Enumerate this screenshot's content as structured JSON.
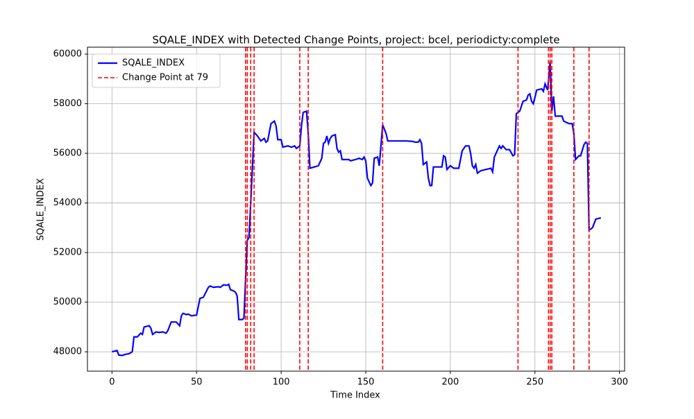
{
  "chart_data": {
    "type": "line",
    "title": "SQALE_INDEX with Detected Change Points, project: bcel, periodicty:complete",
    "xlabel": "Time Index",
    "ylabel": "SQALE_INDEX",
    "x": [
      0,
      3,
      4,
      6,
      8,
      10,
      12,
      13,
      15,
      17,
      18,
      19,
      22,
      23,
      24,
      26,
      28,
      30,
      32,
      33,
      35,
      38,
      40,
      41,
      42,
      44,
      45,
      47,
      50,
      52,
      54,
      57,
      58,
      60,
      63,
      64,
      66,
      68,
      69,
      70,
      72,
      73,
      74,
      75,
      77,
      78,
      79,
      80,
      81,
      82,
      84,
      86,
      88,
      90,
      91,
      92,
      94,
      96,
      97,
      98,
      100,
      101,
      104,
      106,
      108,
      109,
      110,
      111,
      112,
      113,
      115,
      116,
      117,
      122,
      124,
      125,
      126,
      127,
      128,
      129,
      130,
      132,
      133,
      134,
      135,
      136,
      140,
      141,
      144,
      146,
      148,
      149,
      150,
      151,
      152,
      153,
      154,
      155,
      157,
      158,
      160,
      162,
      163,
      169,
      174,
      178,
      179,
      181,
      182,
      183,
      184,
      186,
      187,
      188,
      189,
      190,
      195,
      196,
      197,
      198,
      200,
      202,
      205,
      207,
      209,
      211,
      212,
      213,
      214,
      215,
      216,
      218,
      221,
      224,
      225,
      226,
      229,
      230,
      231,
      233,
      235,
      237,
      238,
      239,
      241,
      243,
      245,
      246,
      247,
      248,
      249,
      250,
      251,
      254,
      255,
      256,
      257.5,
      259,
      260,
      261,
      262,
      266,
      267,
      270,
      272,
      273,
      274,
      276,
      277,
      279,
      280,
      281,
      282,
      283,
      284,
      286,
      289
    ],
    "series": [
      {
        "name": "SQALE_INDEX",
        "color": "#0000ff",
        "values": [
          48000,
          48050,
          47870,
          47850,
          47900,
          47920,
          48000,
          48600,
          48600,
          48750,
          48700,
          49000,
          49050,
          48950,
          48700,
          48800,
          48780,
          48800,
          48750,
          48850,
          49200,
          49200,
          49050,
          49450,
          49550,
          49500,
          49520,
          49450,
          49480,
          50150,
          50200,
          50600,
          50650,
          50600,
          50620,
          50600,
          50700,
          50680,
          50720,
          50500,
          50450,
          50400,
          50250,
          49300,
          49300,
          49350,
          51000,
          52500,
          52600,
          54000,
          56850,
          56700,
          56500,
          56600,
          56450,
          56500,
          57200,
          57300,
          57100,
          56550,
          56550,
          56250,
          56300,
          56250,
          56300,
          56200,
          56250,
          56300,
          57100,
          57650,
          57700,
          56800,
          55400,
          55500,
          55800,
          56400,
          56450,
          56700,
          56400,
          56600,
          56700,
          56750,
          56200,
          56050,
          56100,
          55750,
          55750,
          55700,
          55750,
          55800,
          55750,
          55850,
          55700,
          55000,
          54850,
          54700,
          54800,
          55800,
          55850,
          55500,
          57150,
          56800,
          56500,
          56500,
          56500,
          56480,
          56450,
          56450,
          56550,
          56400,
          55550,
          55650,
          55000,
          54700,
          54700,
          55450,
          55450,
          55900,
          55850,
          55350,
          55500,
          55400,
          55400,
          56100,
          56300,
          56300,
          56000,
          55500,
          55400,
          55550,
          55200,
          55300,
          55350,
          55400,
          55250,
          55850,
          56300,
          56200,
          56300,
          56150,
          56150,
          55900,
          55950,
          57600,
          57700,
          58100,
          58150,
          58350,
          58400,
          58100,
          58000,
          58250,
          58550,
          58600,
          58500,
          58800,
          58550,
          59700,
          57700,
          58300,
          57500,
          57500,
          57300,
          57200,
          57200,
          56800,
          55750,
          55900,
          55900,
          56350,
          56450,
          56400,
          52900,
          52950,
          53000,
          53350,
          53400
        ]
      }
    ],
    "change_points": {
      "name": "Change Point at 79",
      "color": "#ff0000",
      "x": [
        79,
        80,
        82,
        84,
        111,
        116,
        160,
        240,
        258,
        259,
        260,
        273,
        282
      ]
    },
    "xlim": [
      -14.5,
      303
    ],
    "ylim": [
      47220,
      60280
    ],
    "xticks": [
      0,
      50,
      100,
      150,
      200,
      250,
      300
    ],
    "yticks": [
      48000,
      50000,
      52000,
      54000,
      56000,
      58000,
      60000
    ],
    "grid": true,
    "legend": "upper left"
  }
}
